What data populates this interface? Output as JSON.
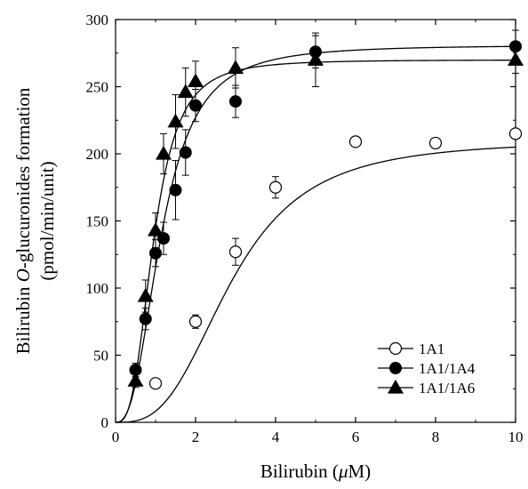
{
  "chart_data": {
    "type": "scatter",
    "xlabel_parts": [
      "Bilirubin (",
      "μ",
      "M)"
    ],
    "ylabel_line1_parts": [
      "Bilirubin ",
      "O",
      "-glucuronides formation"
    ],
    "ylabel_line2": "(pmol/min/unit)",
    "xlim": [
      0,
      10
    ],
    "ylim": [
      0,
      300
    ],
    "x_ticks": [
      0,
      2,
      4,
      6,
      8,
      10
    ],
    "x_tick_labels": [
      "0",
      "2",
      "4",
      "6",
      "8",
      "10"
    ],
    "y_ticks": [
      0,
      50,
      100,
      150,
      200,
      250,
      300
    ],
    "y_tick_labels": [
      "0",
      "50",
      "100",
      "150",
      "200",
      "250",
      "300"
    ],
    "grid": false,
    "legend_position": "bottom-right",
    "series": [
      {
        "name": "1A1",
        "marker": "open-circle",
        "points": [
          {
            "x": 1,
            "y": 29,
            "err": 0
          },
          {
            "x": 2,
            "y": 75,
            "err": 5
          },
          {
            "x": 3,
            "y": 127,
            "err": 10
          },
          {
            "x": 4,
            "y": 175,
            "err": 8
          },
          {
            "x": 6,
            "y": 209,
            "err": 0
          },
          {
            "x": 8,
            "y": 208,
            "err": 0
          },
          {
            "x": 10,
            "y": 215,
            "err": 0
          }
        ],
        "fit": {
          "vmax": 210,
          "s50": 2.9,
          "n": 3.0
        }
      },
      {
        "name": "1A1/1A4",
        "marker": "filled-circle",
        "points": [
          {
            "x": 0.5,
            "y": 39,
            "err": 5
          },
          {
            "x": 0.75,
            "y": 77,
            "err": 8
          },
          {
            "x": 1.0,
            "y": 126,
            "err": 10
          },
          {
            "x": 1.2,
            "y": 137,
            "err": 12
          },
          {
            "x": 1.5,
            "y": 173,
            "err": 22
          },
          {
            "x": 1.75,
            "y": 201,
            "err": 17
          },
          {
            "x": 2.0,
            "y": 236,
            "err": 12
          },
          {
            "x": 3.0,
            "y": 239,
            "err": 12
          },
          {
            "x": 5.0,
            "y": 276,
            "err": 12
          },
          {
            "x": 10.0,
            "y": 280,
            "err": 12
          }
        ],
        "fit": {
          "vmax": 281,
          "s50": 1.15,
          "n": 2.6
        }
      },
      {
        "name": "1A1/1A6",
        "marker": "filled-triangle",
        "points": [
          {
            "x": 0.5,
            "y": 31,
            "err": 5
          },
          {
            "x": 0.75,
            "y": 94,
            "err": 12
          },
          {
            "x": 1.0,
            "y": 143,
            "err": 13
          },
          {
            "x": 1.2,
            "y": 200,
            "err": 15
          },
          {
            "x": 1.5,
            "y": 224,
            "err": 20
          },
          {
            "x": 1.75,
            "y": 246,
            "err": 18
          },
          {
            "x": 2.0,
            "y": 254,
            "err": 15
          },
          {
            "x": 3.0,
            "y": 264,
            "err": 15
          },
          {
            "x": 5.0,
            "y": 270,
            "err": 20
          },
          {
            "x": 10.0,
            "y": 270,
            "err": 10
          }
        ],
        "fit": {
          "vmax": 270,
          "s50": 0.95,
          "n": 3.0
        }
      }
    ]
  }
}
